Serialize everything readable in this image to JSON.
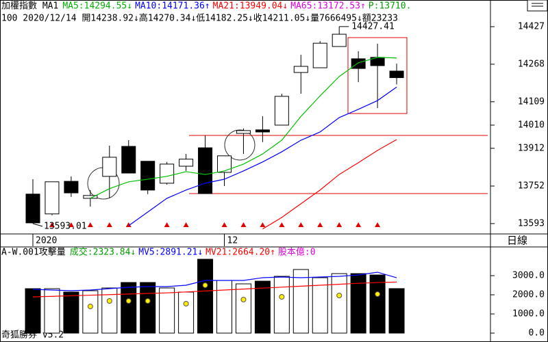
{
  "chart_data": [
    {
      "type": "candlestick",
      "title": "加權指數 MA1",
      "subtitle": "100 2020/12/14 開14238.92↓高14270.34↓低14182.25↓收14211.05↓量7666495↓額23233",
      "header": [
        {
          "text": "MA5:14294.55↓",
          "color": "#00b000"
        },
        {
          "text": "MA10:14171.36↑",
          "color": "#0000ff"
        },
        {
          "text": "MA21:13949.04↓",
          "color": "#ff0000"
        },
        {
          "text": "MA65:13172.53↑",
          "color": "#e000e0"
        },
        {
          "text": "P:13710.",
          "color": "#00a000"
        }
      ],
      "categories": [
        "2020",
        null,
        null,
        null,
        null,
        null,
        null,
        null,
        null,
        null,
        "12",
        null,
        null,
        null,
        null,
        null,
        null,
        null,
        null,
        null
      ],
      "open": [
        13718,
        13634,
        13772,
        13700,
        13793,
        13920,
        13857,
        13764,
        13836,
        13914,
        13810,
        13975,
        13990,
        14010,
        14233,
        14253,
        14343,
        14291,
        14297,
        14238.92
      ],
      "close": [
        13596,
        13770,
        13723,
        13712,
        13874,
        13807,
        13735,
        13845,
        13866,
        13720,
        13880,
        13987,
        13981,
        14132,
        14259,
        14357,
        14395,
        14250,
        14262,
        14211.05
      ],
      "high": [
        13781,
        13770,
        13793,
        13735,
        13923,
        13946,
        13857,
        13854,
        13888,
        13966,
        13880,
        13996,
        14048,
        14143,
        14308,
        14366,
        14427.41,
        14323,
        14355,
        14270.34
      ],
      "low": [
        13593.01,
        13628,
        13706,
        13665,
        13700,
        13807,
        13718,
        13758,
        13816,
        13720,
        13752,
        13888,
        13938,
        14010,
        14143,
        14253,
        14343,
        14192,
        14082,
        14182.25
      ],
      "series": [
        {
          "color": "#00c000",
          "values": [
            null,
            null,
            null,
            13700,
            13741,
            13770,
            13781,
            13793,
            13813,
            13801,
            13816,
            13845,
            13888,
            13946,
            14047,
            14134,
            14216,
            14274,
            14297,
            14294.55
          ]
        },
        {
          "color": "#0000ff",
          "values": [
            null,
            null,
            null,
            null,
            null,
            13584,
            13642,
            13700,
            13735,
            13764,
            13781,
            13816,
            13854,
            13897,
            13946,
            13981,
            14042,
            14077,
            14114,
            14171.36
          ]
        },
        {
          "color": "#ff0000",
          "values": [
            null,
            null,
            null,
            null,
            null,
            null,
            null,
            null,
            null,
            null,
            null,
            null,
            13570,
            13619,
            13677,
            13735,
            13801,
            13851,
            13903,
            13949.04
          ]
        }
      ],
      "annotations": [
        "14427.41",
        "13593.01"
      ],
      "ylim": [
        13555,
        14540
      ],
      "yticks": [
        13593,
        13752,
        13912,
        14010,
        14109,
        14268,
        14427
      ]
    },
    {
      "type": "bar",
      "title": "A-W.001攻擊量",
      "header": [
        {
          "text": "成交:2323.84↓",
          "color": "#00a000"
        },
        {
          "text": "MV5:2891.21↓",
          "color": "#0000ff"
        },
        {
          "text": "MV21:2664.20↑",
          "color": "#ff0000"
        },
        {
          "text": "股本億:0",
          "color": "#e000e0"
        }
      ],
      "values": [
        2321,
        2321,
        2143,
        2214,
        2357,
        2643,
        2643,
        2357,
        2143,
        3857,
        2750,
        2571,
        2714,
        2964,
        3321,
        2893,
        3107,
        3107,
        3036,
        2323.84
      ],
      "series": [
        {
          "color": "#0000ff",
          "values": [
            2286,
            2250,
            2214,
            2250,
            2321,
            2393,
            2429,
            2429,
            2500,
            2750,
            2750,
            2750,
            2893,
            2929,
            2893,
            2929,
            2964,
            3036,
            3179,
            2891.21
          ]
        },
        {
          "color": "#ff0000",
          "values": [
            1893,
            1920,
            1950,
            1980,
            2010,
            2040,
            2070,
            2100,
            2150,
            2200,
            2250,
            2300,
            2350,
            2400,
            2450,
            2500,
            2550,
            2600,
            2640,
            2664.2
          ]
        }
      ],
      "dots": [
        null,
        null,
        null,
        1393,
        1679,
        1679,
        1679,
        null,
        1536,
        2500,
        null,
        1750,
        null,
        1893,
        null,
        null,
        1964,
        null,
        2036,
        null
      ],
      "dot_color": "#ffee00",
      "ylim": [
        0,
        4464
      ],
      "yticks": [
        {
          "value": 0,
          "label": "0.0"
        },
        {
          "value": 1000,
          "label": "1000.0"
        },
        {
          "value": 2000,
          "label": "2000.0"
        },
        {
          "value": 3000,
          "label": "3000.0"
        }
      ]
    }
  ],
  "labels": {
    "period": "日線",
    "app": "奇狐勝券 v5.2"
  }
}
